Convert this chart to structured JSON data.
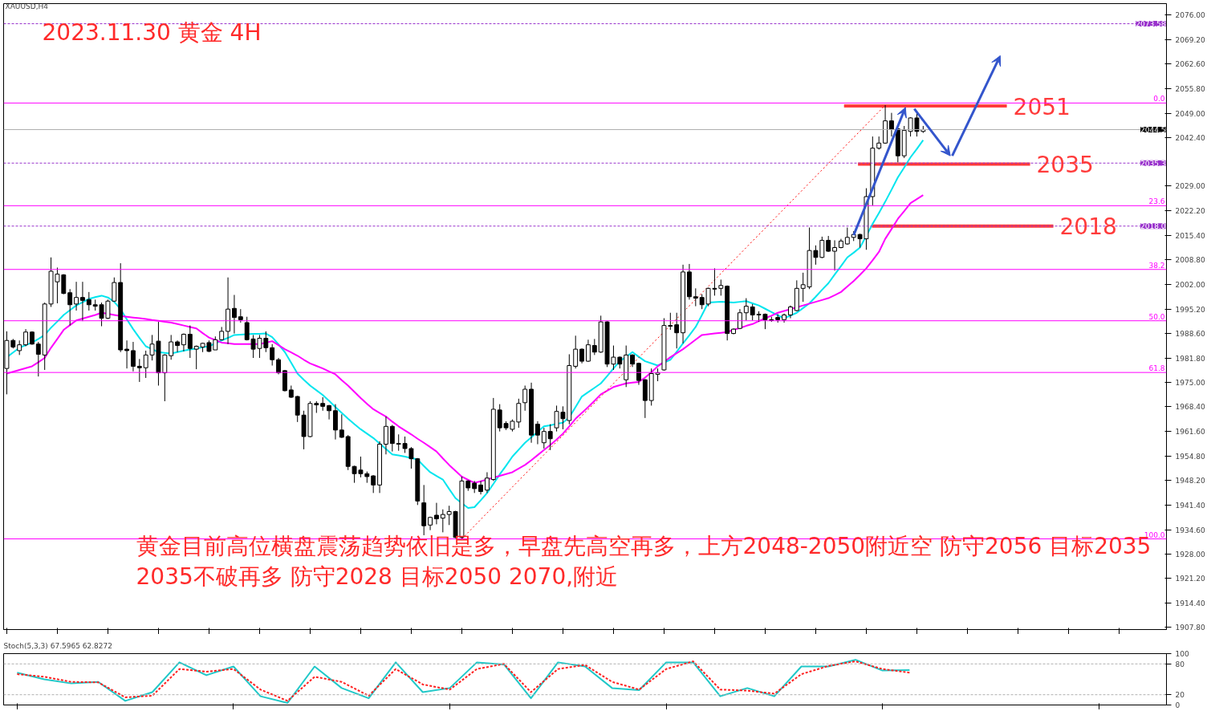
{
  "chart_data": [
    {
      "type": "candlestick",
      "title": "2023.11.30 黄金 4H",
      "subtitle": "XAUUSD,H4",
      "categories": [
        null,
        null,
        null,
        null,
        null,
        null,
        null,
        null,
        null,
        null,
        null,
        null,
        null,
        null,
        null,
        null,
        null,
        null,
        null,
        null,
        null,
        null,
        null,
        null,
        null,
        null,
        null,
        null,
        null,
        null,
        null,
        null,
        null,
        null,
        null,
        null,
        null,
        null,
        null,
        null,
        null,
        null,
        null,
        null,
        null,
        null,
        null,
        null,
        null,
        null,
        null,
        null,
        null,
        null,
        null,
        null,
        null,
        null,
        null,
        null,
        null,
        null,
        null,
        null,
        null,
        null,
        null,
        null,
        null,
        null,
        null,
        null,
        null,
        null,
        null,
        null,
        null,
        null,
        null,
        null,
        null,
        null,
        null,
        null,
        null,
        null,
        null,
        null,
        null,
        null,
        null,
        null,
        null,
        null,
        null,
        null,
        null,
        null,
        null,
        null,
        null,
        null,
        null,
        null,
        null,
        null,
        null,
        null,
        null,
        null,
        null,
        null,
        null,
        null,
        null,
        null,
        null,
        null,
        null,
        null,
        null,
        null,
        null,
        null,
        null,
        null,
        null,
        null,
        null,
        null,
        null,
        null,
        null,
        null,
        null,
        null,
        null,
        null,
        null,
        null,
        null,
        null,
        null,
        null,
        null,
        null,
        null,
        null,
        null,
        null,
        null,
        null,
        null,
        null,
        null,
        null,
        null,
        null,
        null,
        null,
        null,
        null,
        null,
        null,
        null,
        null,
        null,
        null,
        null,
        null,
        null,
        null,
        null,
        null,
        null,
        null,
        null,
        null,
        null,
        null,
        null,
        null,
        null,
        null
      ],
      "ohlc": [
        [
          1978.9,
          1989.1,
          1971.8,
          1986.6
        ],
        [
          1986.6,
          1987.0,
          1984.4,
          1984.8
        ],
        [
          1983.8,
          1986.6,
          1982.6,
          1985.4
        ],
        [
          1985.4,
          1989.7,
          1985.0,
          1988.9
        ],
        [
          1988.9,
          1989.1,
          1985.4,
          1985.6
        ],
        [
          1985.6,
          1986.2,
          1976.7,
          1982.8
        ],
        [
          1982.6,
          1997.0,
          1978.5,
          1996.6
        ],
        [
          1996.6,
          2009.4,
          1995.8,
          2005.6
        ],
        [
          2002.7,
          2006.6,
          1996.8,
          2004.8
        ],
        [
          2004.6,
          2004.8,
          1999.3,
          1999.5
        ],
        [
          1999.7,
          2000.7,
          1990.7,
          1996.4
        ],
        [
          1996.6,
          2002.7,
          1994.8,
          1998.4
        ],
        [
          1998.4,
          2002.7,
          1991.9,
          1997.6
        ],
        [
          1997.8,
          1999.9,
          1994.8,
          1996.4
        ],
        [
          1996.4,
          1997.8,
          1994.8,
          1996.0
        ],
        [
          1996.4,
          1997.0,
          1990.5,
          1992.7
        ],
        [
          1992.7,
          1997.8,
          1992.5,
          1997.4
        ],
        [
          1997.4,
          2003.9,
          1997.2,
          2002.5
        ],
        [
          2002.5,
          2007.8,
          1983.4,
          1984.0
        ],
        [
          1984.2,
          1986.6,
          1978.9,
          1983.8
        ],
        [
          1983.8,
          1986.2,
          1978.1,
          1979.5
        ],
        [
          1979.5,
          1981.5,
          1975.2,
          1979.1
        ],
        [
          1979.1,
          1983.8,
          1976.3,
          1982.6
        ],
        [
          1982.6,
          1988.1,
          1981.1,
          1985.6
        ],
        [
          1986.4,
          1991.7,
          1974.2,
          1977.7
        ],
        [
          1977.7,
          1982.8,
          1969.9,
          1982.6
        ],
        [
          1982.4,
          1988.1,
          1981.3,
          1986.2
        ],
        [
          1986.2,
          1986.6,
          1983.4,
          1985.2
        ],
        [
          1985.4,
          1988.5,
          1983.6,
          1988.3
        ],
        [
          1988.3,
          1990.7,
          1981.8,
          1984.4
        ],
        [
          1984.2,
          1985.2,
          1978.7,
          1985.0
        ],
        [
          1984.8,
          1986.0,
          1983.4,
          1985.8
        ],
        [
          1986.0,
          1986.6,
          1983.4,
          1983.6
        ],
        [
          1984.0,
          1987.7,
          1984.0,
          1986.8
        ],
        [
          1986.8,
          1990.3,
          1986.6,
          1989.1
        ],
        [
          1989.1,
          2003.9,
          1985.6,
          1995.2
        ],
        [
          1995.4,
          1999.1,
          1988.5,
          1992.9
        ],
        [
          1993.1,
          1995.2,
          1991.5,
          1992.3
        ],
        [
          1991.5,
          1993.1,
          1986.6,
          1986.8
        ],
        [
          1987.0,
          1988.1,
          1981.8,
          1984.2
        ],
        [
          1984.4,
          1988.1,
          1981.8,
          1987.2
        ],
        [
          1987.2,
          1989.1,
          1983.4,
          1984.6
        ],
        [
          1984.6,
          1985.6,
          1979.7,
          1981.3
        ],
        [
          1981.3,
          1981.8,
          1977.3,
          1977.7
        ],
        [
          1978.3,
          1978.5,
          1972.6,
          1972.8
        ],
        [
          1973.0,
          1974.2,
          1970.8,
          1971.0
        ],
        [
          1971.2,
          1971.4,
          1964.2,
          1966.1
        ],
        [
          1966.1,
          1967.3,
          1956.7,
          1960.2
        ],
        [
          1960.2,
          1969.9,
          1960.0,
          1969.3
        ],
        [
          1969.3,
          1969.9,
          1966.7,
          1968.9
        ],
        [
          1969.3,
          1971.0,
          1967.3,
          1968.5
        ],
        [
          1968.7,
          1968.9,
          1964.9,
          1967.3
        ],
        [
          1967.3,
          1969.1,
          1959.4,
          1962.0
        ],
        [
          1962.0,
          1966.3,
          1959.8,
          1960.0
        ],
        [
          1960.2,
          1960.6,
          1951.0,
          1952.0
        ],
        [
          1952.0,
          1952.2,
          1947.5,
          1950.0
        ],
        [
          1951.0,
          1954.7,
          1949.0,
          1950.0
        ],
        [
          1950.0,
          1950.6,
          1947.5,
          1949.2
        ],
        [
          1949.4,
          1949.6,
          1944.7,
          1946.9
        ],
        [
          1946.9,
          1958.9,
          1944.7,
          1958.1
        ],
        [
          1958.1,
          1965.7,
          1955.3,
          1963.0
        ],
        [
          1963.0,
          1963.4,
          1956.1,
          1958.3
        ],
        [
          1958.3,
          1960.8,
          1956.3,
          1958.1
        ],
        [
          1958.3,
          1960.2,
          1955.7,
          1956.9
        ],
        [
          1956.9,
          1957.3,
          1951.4,
          1954.1
        ],
        [
          1954.1,
          1954.3,
          1941.4,
          1942.5
        ],
        [
          1942.0,
          1946.9,
          1933.1,
          1935.7
        ],
        [
          1935.9,
          1938.2,
          1934.5,
          1938.0
        ],
        [
          1938.6,
          1942.0,
          1936.1,
          1937.6
        ],
        [
          1937.8,
          1940.2,
          1933.9,
          1938.8
        ],
        [
          1938.8,
          1941.2,
          1935.9,
          1939.6
        ],
        [
          1939.6,
          1939.8,
          1932.3,
          1932.5
        ],
        [
          1932.5,
          1949.2,
          1932.1,
          1948.0
        ],
        [
          1948.0,
          1948.2,
          1945.3,
          1946.1
        ],
        [
          1947.4,
          1948.0,
          1944.7,
          1945.9
        ],
        [
          1946.9,
          1948.0,
          1944.3,
          1945.1
        ],
        [
          1945.5,
          1950.4,
          1944.7,
          1948.8
        ],
        [
          1948.4,
          1970.8,
          1948.0,
          1967.7
        ],
        [
          1967.5,
          1969.1,
          1961.6,
          1962.6
        ],
        [
          1963.8,
          1964.4,
          1962.0,
          1962.6
        ],
        [
          1962.2,
          1964.9,
          1961.6,
          1964.4
        ],
        [
          1964.2,
          1970.6,
          1962.6,
          1969.3
        ],
        [
          1969.5,
          1974.2,
          1967.3,
          1973.2
        ],
        [
          1973.2,
          1975.0,
          1958.5,
          1960.6
        ],
        [
          1963.6,
          1964.4,
          1958.1,
          1960.6
        ],
        [
          1958.5,
          1962.6,
          1956.9,
          1961.6
        ],
        [
          1961.6,
          1963.6,
          1956.5,
          1959.6
        ],
        [
          1962.6,
          1968.7,
          1961.6,
          1967.1
        ],
        [
          1966.9,
          1968.5,
          1962.2,
          1965.1
        ],
        [
          1964.6,
          1982.8,
          1963.6,
          1979.7
        ],
        [
          1979.5,
          1987.9,
          1978.9,
          1984.2
        ],
        [
          1984.2,
          1984.4,
          1980.3,
          1980.9
        ],
        [
          1980.9,
          1986.8,
          1980.7,
          1985.4
        ],
        [
          1985.2,
          1987.0,
          1982.6,
          1983.4
        ],
        [
          1983.4,
          1993.4,
          1983.2,
          1991.7
        ],
        [
          1991.7,
          1991.9,
          1979.3,
          1980.1
        ],
        [
          1980.1,
          1985.2,
          1978.5,
          1982.0
        ],
        [
          1982.0,
          1982.2,
          1978.9,
          1980.1
        ],
        [
          1975.8,
          1985.2,
          1973.8,
          1982.6
        ],
        [
          1982.6,
          1982.8,
          1979.3,
          1980.1
        ],
        [
          1980.3,
          1980.5,
          1974.4,
          1975.6
        ],
        [
          1975.8,
          1976.0,
          1965.3,
          1970.1
        ],
        [
          1970.1,
          1978.9,
          1968.7,
          1977.5
        ],
        [
          1977.3,
          1978.9,
          1975.4,
          1977.7
        ],
        [
          1978.5,
          1992.7,
          1978.3,
          1990.7
        ],
        [
          1990.7,
          1994.2,
          1989.5,
          1990.5
        ],
        [
          1990.9,
          1994.2,
          1984.4,
          1988.7
        ],
        [
          1988.7,
          2007.4,
          1985.8,
          2005.4
        ],
        [
          2005.4,
          2007.6,
          1997.8,
          1998.6
        ],
        [
          1998.6,
          2000.9,
          1996.0,
          1998.2
        ],
        [
          1998.4,
          1999.3,
          1995.2,
          1996.4
        ],
        [
          1996.6,
          2001.1,
          1996.0,
          2000.9
        ],
        [
          2000.9,
          2006.4,
          1998.9,
          2000.7
        ],
        [
          2000.9,
          2003.3,
          1998.9,
          2001.7
        ],
        [
          2001.5,
          2001.7,
          1986.6,
          1988.5
        ],
        [
          1988.5,
          1989.9,
          1988.3,
          1989.7
        ],
        [
          1989.9,
          1995.2,
          1989.7,
          1994.2
        ],
        [
          1994.2,
          1998.2,
          1992.1,
          1996.0
        ],
        [
          1995.8,
          1996.6,
          1992.1,
          1993.6
        ],
        [
          1993.8,
          1994.6,
          1991.7,
          1993.6
        ],
        [
          1993.8,
          1994.0,
          1989.7,
          1992.3
        ],
        [
          1992.3,
          1993.1,
          1991.7,
          1992.1
        ],
        [
          1992.9,
          1993.8,
          1991.5,
          1992.3
        ],
        [
          1992.3,
          1994.0,
          1991.5,
          1993.6
        ],
        [
          1993.6,
          1996.2,
          1992.7,
          1995.8
        ],
        [
          1994.8,
          2003.1,
          1994.6,
          2000.9
        ],
        [
          2000.9,
          2005.2,
          1997.2,
          2001.9
        ],
        [
          2001.3,
          2017.6,
          2000.7,
          2011.3
        ],
        [
          2011.3,
          2012.7,
          2007.4,
          2009.4
        ],
        [
          2009.4,
          2015.1,
          2009.2,
          2014.1
        ],
        [
          2014.1,
          2015.3,
          2010.9,
          2011.1
        ],
        [
          2011.1,
          2014.1,
          2005.8,
          2012.1
        ],
        [
          2012.1,
          2014.5,
          2011.9,
          2013.9
        ],
        [
          2013.1,
          2017.6,
          2012.9,
          2014.9
        ],
        [
          2014.9,
          2016.6,
          2013.9,
          2015.7
        ],
        [
          2015.7,
          2015.9,
          2012.1,
          2014.5
        ],
        [
          2014.5,
          2028.4,
          2011.5,
          2026.1
        ],
        [
          2026.1,
          2042.6,
          2023.7,
          2039.4
        ],
        [
          2039.4,
          2042.6,
          2039.0,
          2040.8
        ],
        [
          2040.8,
          2051.2,
          2040.6,
          2046.9
        ],
        [
          2046.9,
          2049.1,
          2042.6,
          2044.5
        ],
        [
          2044.7,
          2044.9,
          2035.5,
          2037.3
        ],
        [
          2037.3,
          2045.5,
          2036.7,
          2044.3
        ],
        [
          2044.0,
          2047.9,
          2042.6,
          2047.7
        ],
        [
          2047.7,
          2049.1,
          2042.6,
          2044.0
        ],
        [
          2044.0,
          2045.5,
          2043.6,
          2044.5
        ],
        null,
        null,
        null,
        null,
        null,
        null,
        null,
        null,
        null,
        null,
        null,
        null,
        null,
        null,
        null,
        null,
        null,
        null,
        null,
        null,
        null,
        null,
        null,
        null,
        null,
        null,
        null,
        null,
        null,
        null,
        null,
        null,
        null,
        null,
        null,
        null,
        null,
        null
      ],
      "series": [
        {
          "type": "line",
          "color": "#00e5ee",
          "values": [
            1982.0,
            1983.3,
            1984.6,
            1985.3,
            1986.0,
            1987.0,
            1988.1,
            1990.1,
            1991.8,
            1993.6,
            1994.9,
            1996.2,
            1997.1,
            1998.0,
            1998.5,
            1998.9,
            1998.4,
            1997.2,
            1995.2,
            1992.4,
            1989.7,
            1987.3,
            1985.0,
            1984.2,
            1983.4,
            1983.2,
            1983.0,
            1983.4,
            1983.8,
            1984.1,
            1984.4,
            1984.7,
            1985.0,
            1985.8,
            1986.6,
            1987.3,
            1988.1,
            1988.2,
            1988.3,
            1988.4,
            1988.4,
            1988.5,
            1987.5,
            1985.5,
            1983.4,
            1980.5,
            1977.5,
            1975.8,
            1974.2,
            1972.9,
            1971.6,
            1970.0,
            1968.3,
            1966.7,
            1965.1,
            1963.6,
            1962.2,
            1961.0,
            1959.8,
            1958.3,
            1956.8,
            1955.3,
            1955.0,
            1954.7,
            1954.3,
            1953.9,
            1952.1,
            1950.4,
            1949.4,
            1948.4,
            1945.8,
            1943.3,
            1941.9,
            1940.6,
            1940.8,
            1942.7,
            1944.7,
            1947.2,
            1949.8,
            1952.2,
            1954.7,
            1956.6,
            1958.5,
            1960.0,
            1961.5,
            1963.0,
            1963.3,
            1963.7,
            1964.0,
            1965.5,
            1968.3,
            1971.2,
            1972.4,
            1973.6,
            1974.8,
            1976.8,
            1978.9,
            1980.9,
            1982.1,
            1983.4,
            1982.1,
            1980.9,
            1980.3,
            1979.7,
            1980.5,
            1981.3,
            1983.5,
            1985.8,
            1988.0,
            1990.3,
            1993.6,
            1997.0,
            1997.1,
            1997.2,
            1997.1,
            1997.0,
            1997.2,
            1997.4,
            1996.8,
            1996.2,
            1995.3,
            1994.4,
            1993.5,
            1992.7,
            1993.4,
            1994.2,
            1995.5,
            1996.8,
            1998.6,
            2000.5,
            2002.3,
            2004.7,
            2007.0,
            2009.4,
            2010.7,
            2012.1,
            2015.3,
            2018.6,
            2021.6,
            2024.7,
            2028.0,
            2031.4,
            2034.1,
            2036.9,
            2039.2,
            2041.6,
            null,
            null,
            null,
            null,
            null,
            null,
            null,
            null,
            null,
            null,
            null,
            null,
            null,
            null,
            null,
            null,
            null,
            null,
            null,
            null,
            null,
            null,
            null,
            null,
            null,
            null,
            null,
            null,
            null,
            null,
            null,
            null,
            null,
            null,
            null,
            null,
            null,
            null
          ]
        },
        {
          "type": "line",
          "color": "#ff00ff",
          "values": [
            1977.5,
            1978.0,
            1978.5,
            1979.0,
            1979.5,
            1980.6,
            1981.8,
            1984.6,
            1987.0,
            1989.5,
            1990.8,
            1992.1,
            1992.6,
            1993.1,
            1993.6,
            1994.2,
            1993.9,
            1993.6,
            1993.3,
            1993.1,
            1992.9,
            1992.7,
            1992.5,
            1992.2,
            1992.0,
            1991.7,
            1991.5,
            1991.1,
            1990.7,
            1990.3,
            1989.9,
            1988.6,
            1987.4,
            1986.7,
            1986.0,
            1985.8,
            1985.6,
            1985.6,
            1985.6,
            1985.6,
            1985.6,
            1986.0,
            1986.4,
            1985.3,
            1984.2,
            1983.3,
            1982.4,
            1981.3,
            1980.3,
            1979.6,
            1978.9,
            1978.1,
            1977.3,
            1975.7,
            1974.2,
            1972.5,
            1970.8,
            1969.2,
            1967.7,
            1966.7,
            1965.7,
            1964.3,
            1963.0,
            1961.9,
            1960.8,
            1959.6,
            1958.5,
            1957.3,
            1956.1,
            1954.2,
            1952.4,
            1950.8,
            1949.2,
            1948.3,
            1947.5,
            1947.9,
            1948.4,
            1948.9,
            1949.4,
            1949.9,
            1950.4,
            1951.4,
            1952.4,
            1953.7,
            1955.1,
            1956.5,
            1957.9,
            1959.4,
            1961.0,
            1963.0,
            1965.1,
            1966.7,
            1968.3,
            1970.0,
            1971.8,
            1972.8,
            1973.8,
            1974.3,
            1974.8,
            1975.0,
            1975.2,
            1976.4,
            1977.9,
            1979.5,
            1980.7,
            1982.0,
            1983.1,
            1984.2,
            1985.5,
            1986.8,
            1988.1,
            1988.3,
            1988.5,
            1988.7,
            1988.9,
            1989.5,
            1990.0,
            1990.6,
            1991.1,
            1991.9,
            1992.7,
            1993.4,
            1994.2,
            1994.7,
            1995.2,
            1995.7,
            1996.2,
            1996.7,
            1997.2,
            1997.7,
            1998.2,
            1999.0,
            1999.9,
            2001.4,
            2002.9,
            2004.6,
            2006.4,
            2008.6,
            2010.9,
            2014.5,
            2017.2,
            2020.0,
            2022.1,
            2024.3,
            2025.4,
            2026.5,
            null,
            null,
            null,
            null,
            null,
            null,
            null,
            null,
            null,
            null,
            null,
            null,
            null,
            null,
            null,
            null,
            null,
            null,
            null,
            null,
            null,
            null,
            null,
            null,
            null,
            null,
            null,
            null,
            null,
            null,
            null,
            null,
            null,
            null,
            null,
            null,
            null,
            null
          ]
        }
      ],
      "ylim": [
        1907.2,
        2079.1
      ],
      "yticks": [
        {
          "value": 2076.0,
          "label": "2076.00"
        },
        {
          "value": 2069.2,
          "label": "2069.20"
        },
        {
          "value": 2062.6,
          "label": "2062.60"
        },
        {
          "value": 2055.8,
          "label": "2055.80"
        },
        {
          "value": 2049.0,
          "label": "2049.00"
        },
        {
          "value": 2042.4,
          "label": "2042.40"
        },
        {
          "value": 2029.0,
          "label": "2029.00"
        },
        {
          "value": 2022.2,
          "label": "2022.20"
        },
        {
          "value": 2015.4,
          "label": "2015.40"
        },
        {
          "value": 2008.8,
          "label": "2008.80"
        },
        {
          "value": 2002.0,
          "label": "2002.00"
        },
        {
          "value": 1995.2,
          "label": "1995.20"
        },
        {
          "value": 1988.6,
          "label": "1988.60"
        },
        {
          "value": 1981.8,
          "label": "1981.80"
        },
        {
          "value": 1975.0,
          "label": "1975.00"
        },
        {
          "value": 1968.4,
          "label": "1968.40"
        },
        {
          "value": 1961.6,
          "label": "1961.60"
        },
        {
          "value": 1954.8,
          "label": "1954.80"
        },
        {
          "value": 1948.2,
          "label": "1948.20"
        },
        {
          "value": 1941.4,
          "label": "1941.40"
        },
        {
          "value": 1934.6,
          "label": "1934.60"
        },
        {
          "value": 1928.0,
          "label": "1928.00"
        },
        {
          "value": 1921.2,
          "label": "1921.20"
        },
        {
          "value": 1914.4,
          "label": "1914.40"
        },
        {
          "value": 1907.8,
          "label": "1907.80"
        }
      ],
      "tick_labels": "y",
      "grid": false,
      "ref_lines": [
        {
          "axis": "y",
          "value": 2073.58,
          "label": "2073.58",
          "color": "#9932cc",
          "line_style": "dashed"
        },
        {
          "axis": "y",
          "value": 2044.5,
          "label": "2044.5",
          "color": "#b0b0b0",
          "line_style": "solid"
        },
        {
          "axis": "y",
          "value": 2035.3,
          "label": "2035.3",
          "color": "#9932cc",
          "line_style": "dashed"
        },
        {
          "axis": "y",
          "value": 2018.0,
          "label": "2018.0",
          "color": "#9932cc",
          "line_style": "dashed"
        },
        {
          "axis": "y",
          "value": 2051,
          "label": "2051",
          "color": "#ff3b3b",
          "line_style": "solid"
        },
        {
          "axis": "y",
          "value": 2035,
          "label": "2035",
          "color": "#ff3b3b",
          "line_style": "solid"
        },
        {
          "axis": "y",
          "value": 2018,
          "label": "2018",
          "color": "#ff3b3b",
          "line_style": "solid"
        },
        {
          "axis": "y",
          "value": 2051.8,
          "color": "#ff00ff",
          "line_style": "solid"
        },
        {
          "axis": "y",
          "value": 2023.6,
          "color": "#ff00ff",
          "line_style": "solid"
        },
        {
          "axis": "y",
          "value": 2006.1,
          "color": "#ff00ff",
          "line_style": "solid"
        },
        {
          "axis": "y",
          "value": 1992.0,
          "color": "#ff00ff",
          "line_style": "solid"
        },
        {
          "axis": "y",
          "value": 1977.8,
          "color": "#ff00ff",
          "line_style": "solid"
        },
        {
          "axis": "y",
          "value": 1932.1,
          "color": "#ff00ff",
          "line_style": "solid"
        }
      ],
      "annotations": [
        {
          "text": "0.0",
          "y": 2051.8
        },
        {
          "text": "23.6",
          "y": 2023.6
        },
        {
          "text": "38.2",
          "y": 2006.1
        },
        {
          "text": "50.0",
          "y": 1992.0
        },
        {
          "text": "61.8",
          "y": 1977.8
        },
        {
          "text": "100.0",
          "y": 1932.1
        },
        "黄金目前高位横盘震荡趋势依旧是多，早盘先高空再多，上方2048-2050附近空 防守2056 目标2035",
        "2035不破再多 防守2028 目标2050 2070,附近"
      ]
    },
    {
      "type": "line",
      "title": "Stoch(5,3,3) 67.5965 62.8272",
      "categories": [
        null,
        null,
        null,
        null,
        null,
        null,
        null,
        null,
        null,
        null,
        null,
        null,
        null,
        null,
        null,
        null,
        null,
        null,
        null,
        null,
        null,
        null,
        null,
        null,
        null,
        null,
        null,
        null,
        null,
        null,
        null,
        null,
        null,
        null,
        null,
        null,
        null,
        null,
        null,
        null,
        null,
        null,
        null
      ],
      "series": [
        {
          "color": "#20c8c8",
          "line_style": "solid",
          "values": [
            63,
            50,
            42,
            45,
            8,
            25,
            83,
            58,
            75,
            17,
            4,
            75,
            33,
            13,
            83,
            25,
            33,
            83,
            79,
            13,
            83,
            75,
            33,
            29,
            83,
            83,
            17,
            33,
            17,
            75,
            75,
            88,
            67,
            68,
            null,
            null,
            null,
            null,
            null,
            null,
            null,
            null,
            null
          ]
        },
        {
          "color": "#ff2020",
          "line_style": "dashed",
          "values": [
            60,
            55,
            45,
            44,
            15,
            18,
            70,
            65,
            70,
            30,
            8,
            55,
            45,
            18,
            70,
            40,
            30,
            70,
            80,
            25,
            70,
            78,
            45,
            30,
            70,
            85,
            30,
            28,
            22,
            60,
            76,
            85,
            70,
            63,
            null,
            null,
            null,
            null,
            null,
            null,
            null,
            null,
            null
          ]
        }
      ],
      "ylim": [
        0,
        100
      ],
      "yticks": [
        0,
        20,
        80,
        100
      ],
      "tick_labels": "y",
      "grid": false,
      "ref_lines": [
        {
          "axis": "y",
          "value": 20,
          "color": "#b0b0b0",
          "line_style": "dashed"
        },
        {
          "axis": "y",
          "value": 80,
          "color": "#b0b0b0",
          "line_style": "dashed"
        }
      ]
    }
  ]
}
